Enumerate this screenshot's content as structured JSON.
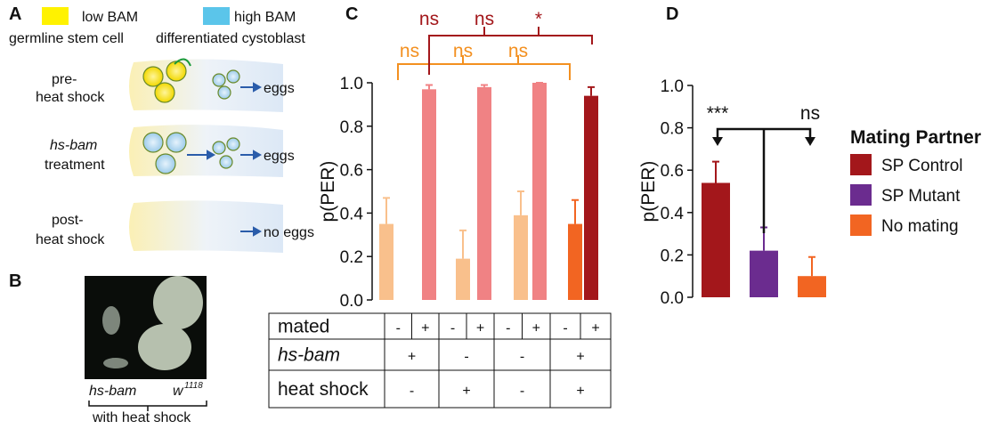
{
  "panel_a": {
    "label": "A",
    "legend": [
      "low BAM",
      "high BAM"
    ],
    "legend_sub": [
      "germline stem cell",
      "differentiated cystoblast"
    ],
    "rows": [
      {
        "label": [
          "pre-",
          "heat shock"
        ],
        "outcome": "eggs"
      },
      {
        "label": [
          "hs-bam",
          "treatment"
        ],
        "outcome": "eggs"
      },
      {
        "label": [
          "post-",
          "heat shock"
        ],
        "outcome": "no eggs"
      }
    ]
  },
  "panel_b": {
    "label": "B",
    "genotypes": [
      "hs-bam",
      "w"
    ],
    "superscript": "1118",
    "caption": "with heat shock"
  },
  "chart_data": [
    {
      "panel": "C",
      "type": "bar",
      "y_label": "p(PER)",
      "values": [
        0.35,
        0.97,
        0.19,
        0.98,
        0.39,
        1.0,
        0.35,
        0.94
      ],
      "errors": [
        0.12,
        0.02,
        0.13,
        0.01,
        0.11,
        0,
        0.11,
        0.04
      ],
      "colors": [
        "#f9c08c",
        "#f08284",
        "#f9c08c",
        "#f08284",
        "#f9c08c",
        "#f08284",
        "#f26522",
        "#a3171b"
      ],
      "ylim": [
        0,
        1
      ],
      "yticks": [
        {
          "value": 0,
          "label": "0.0"
        },
        0.2,
        0.4,
        0.6,
        0.8,
        {
          "value": 1,
          "label": "1.0"
        }
      ],
      "annotations": {
        "lower": [
          "ns",
          "ns",
          "ns"
        ],
        "upper": [
          "ns",
          "ns",
          "*"
        ]
      },
      "table": {
        "rows": [
          {
            "label": "mated",
            "cells": [
              "-",
              "+",
              "-",
              "+",
              "-",
              "+",
              "-",
              "+"
            ]
          },
          {
            "label": "hs-bam",
            "cells": [
              "+",
              "-",
              "-",
              "+"
            ]
          },
          {
            "label": "heat shock",
            "cells": [
              "-",
              "+",
              "-",
              "+"
            ]
          }
        ]
      }
    },
    {
      "panel": "D",
      "type": "bar",
      "y_label": "p(PER)",
      "legend_title": "Mating Partner",
      "series": [
        {
          "name": "SP Control",
          "color": "#a3171b",
          "values": [
            0.54
          ],
          "errors": [
            0.1
          ]
        },
        {
          "name": "SP Mutant",
          "color": "#6b2c8f",
          "values": [
            0.22
          ],
          "errors": [
            0.11
          ]
        },
        {
          "name": "No mating",
          "color": "#f26522",
          "values": [
            0.1
          ],
          "errors": [
            0.09
          ]
        }
      ],
      "ylim": [
        0,
        1
      ],
      "yticks": [
        {
          "value": 0,
          "label": "0.0"
        },
        0.2,
        0.4,
        0.6,
        0.8,
        {
          "value": 1,
          "label": "1.0"
        }
      ],
      "annotations": [
        "***",
        "ns"
      ]
    }
  ]
}
